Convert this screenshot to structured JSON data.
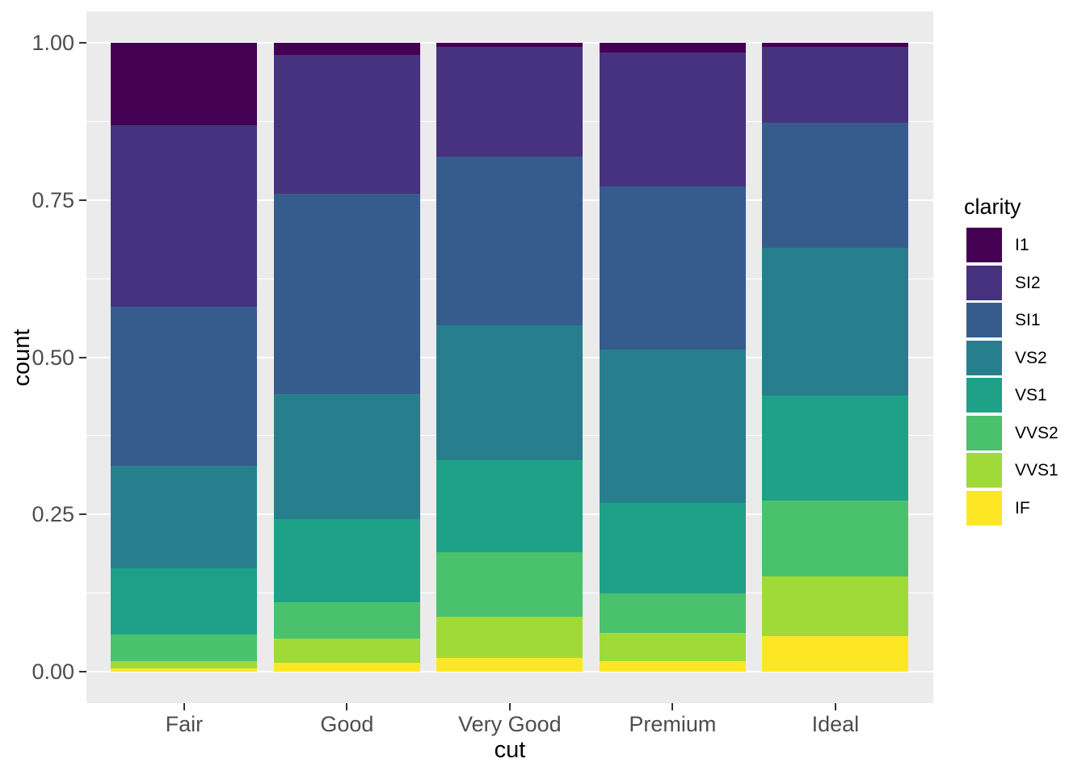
{
  "chart_data": {
    "type": "bar",
    "subtype": "stacked-filled",
    "title": "",
    "xlabel": "cut",
    "ylabel": "count",
    "categories": [
      "Fair",
      "Good",
      "Very Good",
      "Premium",
      "Ideal"
    ],
    "series": [
      {
        "name": "I1",
        "color": "#440154",
        "values": [
          0.1304,
          0.0196,
          0.007,
          0.0149,
          0.0068
        ]
      },
      {
        "name": "SI2",
        "color": "#46327E",
        "values": [
          0.2894,
          0.2203,
          0.1738,
          0.2138,
          0.1206
        ]
      },
      {
        "name": "SI1",
        "color": "#365C8D",
        "values": [
          0.2534,
          0.318,
          0.2682,
          0.2592,
          0.1987
        ]
      },
      {
        "name": "VS2",
        "color": "#277F8E",
        "values": [
          0.1621,
          0.1994,
          0.2145,
          0.2434,
          0.2353
        ]
      },
      {
        "name": "VS1",
        "color": "#1FA187",
        "values": [
          0.1056,
          0.1321,
          0.1469,
          0.1442,
          0.1665
        ]
      },
      {
        "name": "VVS2",
        "color": "#4AC16D",
        "values": [
          0.0429,
          0.0583,
          0.1022,
          0.0631,
          0.1209
        ]
      },
      {
        "name": "VVS1",
        "color": "#A0DA39",
        "values": [
          0.0106,
          0.0379,
          0.0653,
          0.0447,
          0.095
        ]
      },
      {
        "name": "IF",
        "color": "#FDE725",
        "values": [
          0.0056,
          0.0145,
          0.0222,
          0.0167,
          0.0562
        ]
      }
    ],
    "legend": {
      "title": "clarity",
      "position": "right",
      "labels": [
        "I1",
        "SI2",
        "SI1",
        "VS2",
        "VS1",
        "VVS2",
        "VVS1",
        "IF"
      ]
    },
    "y_axis": {
      "ticks": [
        {
          "label": "0.00",
          "value": 0.0
        },
        {
          "label": "0.25",
          "value": 0.25
        },
        {
          "label": "0.50",
          "value": 0.5
        },
        {
          "label": "0.75",
          "value": 0.75
        },
        {
          "label": "1.00",
          "value": 1.0
        }
      ],
      "minor_ticks": [
        0.125,
        0.375,
        0.625,
        0.875
      ],
      "ylim": [
        0,
        1
      ],
      "grid": true
    },
    "colors": {
      "panel_background": "#EBEBEB",
      "grid": "#FFFFFF",
      "axis_text": "#4D4D4D",
      "tick_mark": "#333333",
      "axis_title": "#000000"
    }
  }
}
